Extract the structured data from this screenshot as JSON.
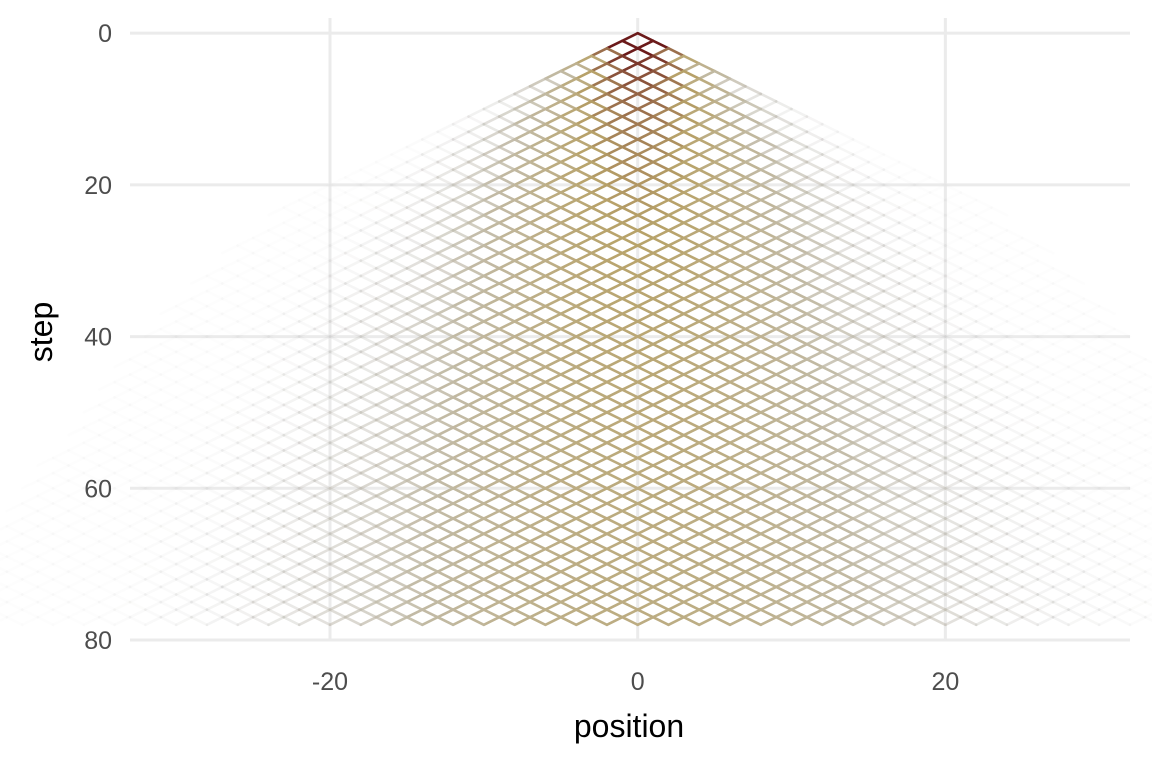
{
  "chart_data": {
    "type": "line",
    "title": "",
    "xlabel": "position",
    "ylabel": "step",
    "xlim": [
      -33,
      32
    ],
    "ylim": [
      80,
      -2
    ],
    "y_reversed": true,
    "x_ticks": [
      -20,
      0,
      20
    ],
    "x_tick_labels": [
      "-20",
      "0",
      "20"
    ],
    "y_ticks": [
      0,
      20,
      40,
      60,
      80
    ],
    "y_tick_labels": [
      "0",
      "20",
      "40",
      "60",
      "80"
    ],
    "grid": true,
    "legend": "none",
    "description_of_data": "random walk transitions from position x at step t to x±1 at step t+1, starting at position 0, step 0",
    "steps": 78,
    "start_position": 0,
    "colors": {
      "high": "#6b1a1a",
      "mid": "#b8a36a",
      "low": "#c8c8c8",
      "grid": "#ebebeb"
    }
  }
}
